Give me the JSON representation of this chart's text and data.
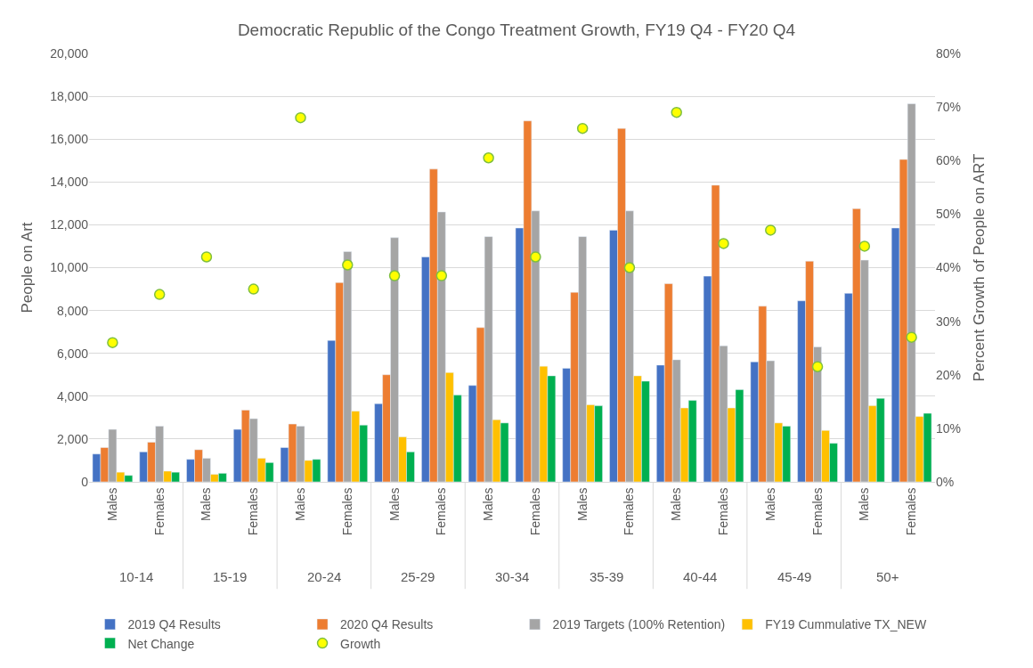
{
  "chart_data": {
    "type": "bar",
    "title": "Democratic Republic of the Congo Treatment Growth, FY19 Q4 - FY20 Q4",
    "xlabel": null,
    "ylabel": "People on Art",
    "y2label": "Percent Growth of People on ART",
    "categories": [
      "Males",
      "Females",
      "Males",
      "Females",
      "Males",
      "Females",
      "Males",
      "Females",
      "Males",
      "Females",
      "Males",
      "Females",
      "Males",
      "Females",
      "Males",
      "Females",
      "Males",
      "Females"
    ],
    "annotations": [
      "10-14",
      "15-19",
      "20-24",
      "25-29",
      "30-34",
      "35-39",
      "40-44",
      "45-49",
      "50+"
    ],
    "series": [
      {
        "name": "2019 Q4 Results",
        "color": "#4472c4",
        "values": [
          1300,
          1400,
          1050,
          2450,
          1600,
          6600,
          3650,
          10500,
          4500,
          11850,
          5300,
          11750,
          5450,
          9600,
          5600,
          8450,
          8800,
          11850
        ]
      },
      {
        "name": "2020 Q4 Results",
        "color": "#ed7d31",
        "values": [
          1600,
          1850,
          1500,
          3350,
          2700,
          9300,
          5000,
          14600,
          7200,
          16850,
          8850,
          16500,
          9250,
          13850,
          8200,
          10300,
          12750,
          15050
        ]
      },
      {
        "name": "2019 Targets (100% Retention)",
        "color": "#a5a5a5",
        "values": [
          2450,
          2600,
          1100,
          2950,
          2600,
          10750,
          11400,
          12600,
          11450,
          12650,
          11450,
          12650,
          5700,
          6350,
          5650,
          6300,
          10350,
          17650
        ]
      },
      {
        "name": "FY19 Cummulative TX_NEW",
        "color": "#ffc000",
        "values": [
          450,
          500,
          350,
          1100,
          1000,
          3300,
          2100,
          5100,
          2900,
          5400,
          3600,
          4950,
          3450,
          3450,
          2750,
          2400,
          3550,
          3050
        ]
      },
      {
        "name": "Net Change",
        "color": "#00b050",
        "values": [
          300,
          450,
          400,
          900,
          1050,
          2650,
          1400,
          4050,
          2750,
          4950,
          3550,
          4700,
          3800,
          4300,
          2600,
          1800,
          3900,
          3200
        ]
      },
      {
        "name": "Growth",
        "type": "scatter",
        "axis": "y2",
        "color": "#ffff00",
        "values": [
          26,
          35,
          42,
          36,
          68,
          40.5,
          38.5,
          38.5,
          60.5,
          42,
          66,
          40,
          69,
          44.5,
          47,
          21.5,
          44,
          27
        ]
      }
    ],
    "ylim": [
      0,
      20000
    ],
    "yticks": [
      {
        "value": 0,
        "label": "0"
      },
      {
        "value": 2000,
        "label": "2,000"
      },
      {
        "value": 4000,
        "label": "4,000"
      },
      {
        "value": 6000,
        "label": "6,000"
      },
      {
        "value": 8000,
        "label": "8,000"
      },
      {
        "value": 10000,
        "label": "10,000"
      },
      {
        "value": 12000,
        "label": "12,000"
      },
      {
        "value": 14000,
        "label": "14,000"
      },
      {
        "value": 16000,
        "label": "16,000"
      },
      {
        "value": 18000,
        "label": "18,000"
      },
      {
        "value": 20000,
        "label": "20,000"
      }
    ],
    "y2lim": [
      0,
      80
    ],
    "y2ticks": [
      {
        "value": 0,
        "label": "0%"
      },
      {
        "value": 10,
        "label": "10%"
      },
      {
        "value": 20,
        "label": "20%"
      },
      {
        "value": 30,
        "label": "30%"
      },
      {
        "value": 40,
        "label": "40%"
      },
      {
        "value": 50,
        "label": "50%"
      },
      {
        "value": 60,
        "label": "60%"
      },
      {
        "value": 70,
        "label": "70%"
      },
      {
        "value": 80,
        "label": "80%"
      }
    ],
    "grid": "y",
    "legend": "bottom",
    "marker": "circle"
  }
}
